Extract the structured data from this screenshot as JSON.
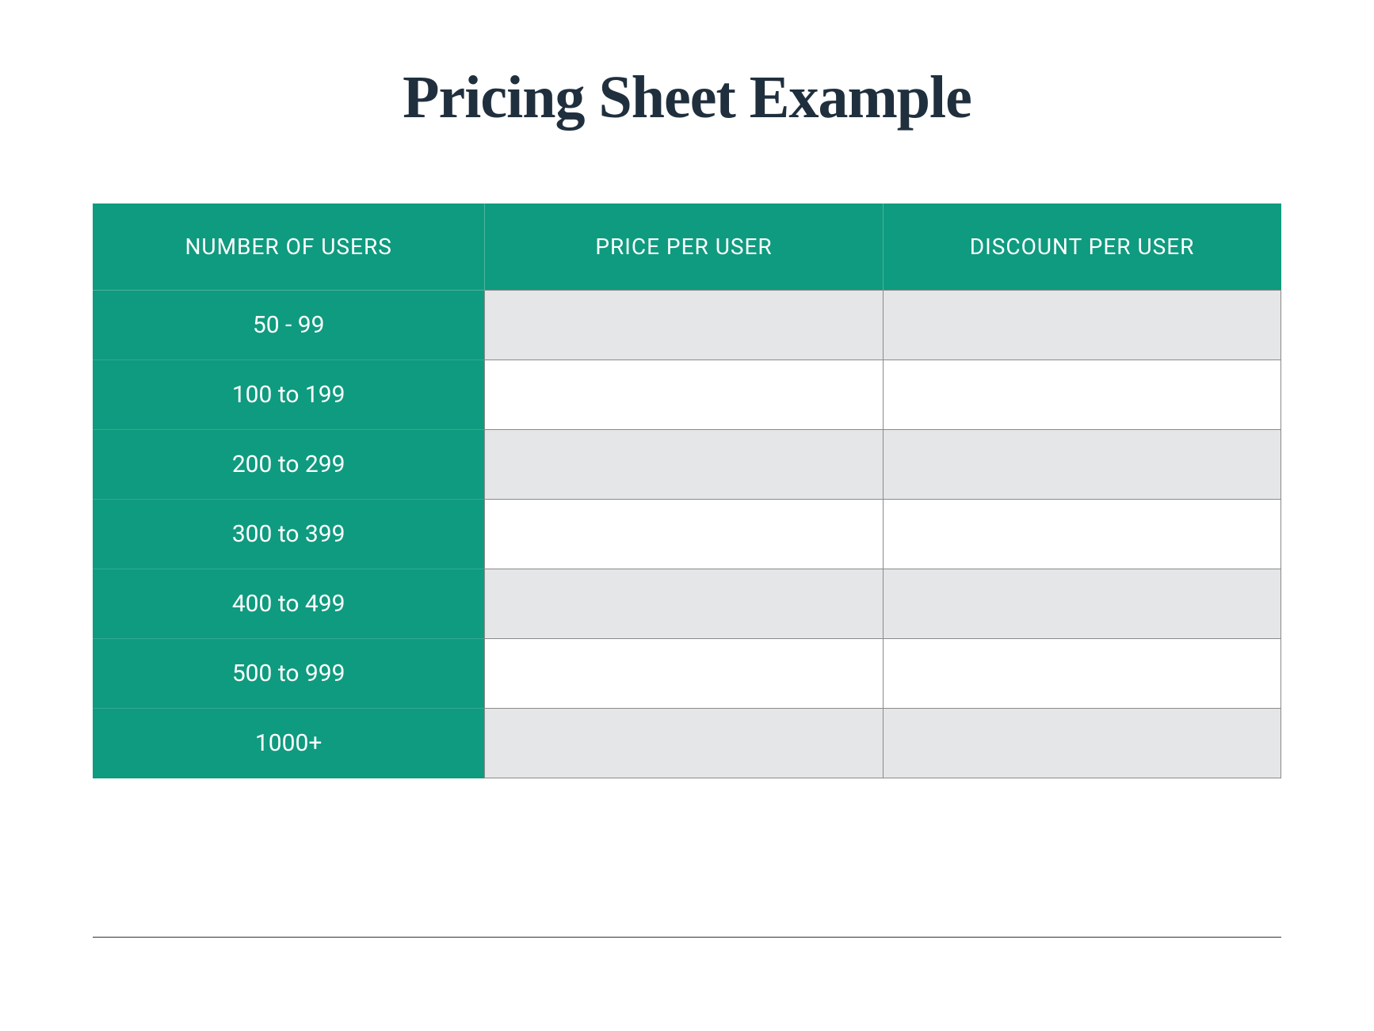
{
  "title": "Pricing Sheet Example",
  "table": {
    "type": "table",
    "columns": [
      "NUMBER OF USERS",
      "PRICE PER USER",
      "DISCOUNT PER USER"
    ],
    "rows": [
      {
        "label": "50 - 99",
        "price": "",
        "discount": ""
      },
      {
        "label": "100 to 199",
        "price": "",
        "discount": ""
      },
      {
        "label": "200 to 299",
        "price": "",
        "discount": ""
      },
      {
        "label": "300 to 399",
        "price": "",
        "discount": ""
      },
      {
        "label": "400 to 499",
        "price": "",
        "discount": ""
      },
      {
        "label": "500 to 999",
        "price": "",
        "discount": ""
      },
      {
        "label": "1000+",
        "price": "",
        "discount": ""
      }
    ],
    "header_background_color": "#0f9b7f",
    "header_text_color": "#ffffff",
    "first_col_background_color": "#0f9b7f",
    "first_col_text_color": "#ffffff",
    "alt_row_even_color": "#e5e6e8",
    "alt_row_odd_color": "#ffffff",
    "border_color": "#8a8a8a",
    "title_color": "#1f2f3d",
    "title_fontsize": 76,
    "header_fontsize": 28,
    "cell_fontsize": 30
  }
}
